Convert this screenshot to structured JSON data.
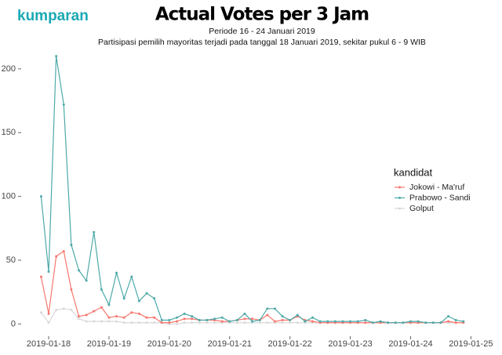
{
  "brand": "kumparan",
  "chart_data": {
    "type": "line",
    "title": "Actual Votes per 3 Jam",
    "subtitle": "Periode 16 - 24 Januari 2019",
    "annotation": "Partisipasi pemilih mayoritas terjadi pada tanggal 18 Januari 2019, sekitar pukul 6 - 9 WIB",
    "legend_title": "kandidat",
    "x": [
      "2019-01-17 21:00",
      "2019-01-18 00:00",
      "2019-01-18 03:00",
      "2019-01-18 06:00",
      "2019-01-18 09:00",
      "2019-01-18 12:00",
      "2019-01-18 15:00",
      "2019-01-18 18:00",
      "2019-01-18 21:00",
      "2019-01-19 00:00",
      "2019-01-19 03:00",
      "2019-01-19 06:00",
      "2019-01-19 09:00",
      "2019-01-19 12:00",
      "2019-01-19 15:00",
      "2019-01-19 18:00",
      "2019-01-19 21:00",
      "2019-01-20 00:00",
      "2019-01-20 03:00",
      "2019-01-20 06:00",
      "2019-01-20 09:00",
      "2019-01-20 12:00",
      "2019-01-20 15:00",
      "2019-01-20 18:00",
      "2019-01-20 21:00",
      "2019-01-21 00:00",
      "2019-01-21 03:00",
      "2019-01-21 06:00",
      "2019-01-21 09:00",
      "2019-01-21 12:00",
      "2019-01-21 15:00",
      "2019-01-21 18:00",
      "2019-01-21 21:00",
      "2019-01-22 00:00",
      "2019-01-22 03:00",
      "2019-01-22 06:00",
      "2019-01-22 09:00",
      "2019-01-22 12:00",
      "2019-01-22 15:00",
      "2019-01-22 18:00",
      "2019-01-22 21:00",
      "2019-01-23 00:00",
      "2019-01-23 03:00",
      "2019-01-23 06:00",
      "2019-01-23 09:00",
      "2019-01-23 12:00",
      "2019-01-23 15:00",
      "2019-01-23 18:00",
      "2019-01-23 21:00",
      "2019-01-24 00:00",
      "2019-01-24 03:00",
      "2019-01-24 06:00",
      "2019-01-24 09:00",
      "2019-01-24 12:00",
      "2019-01-24 15:00",
      "2019-01-24 18:00",
      "2019-01-24 21:00"
    ],
    "series": [
      {
        "name": "Jokowi - Ma'ruf",
        "color": "#f8766d",
        "values": [
          37,
          8,
          53,
          57,
          27,
          6,
          7,
          10,
          13,
          5,
          6,
          5,
          9,
          8,
          5,
          5,
          1,
          1,
          2,
          4,
          4,
          3,
          3,
          3,
          2,
          2,
          3,
          4,
          4,
          3,
          7,
          2,
          3,
          3,
          6,
          3,
          2,
          1,
          1,
          1,
          1,
          1,
          1,
          1,
          1,
          1,
          1,
          1,
          1,
          1,
          1,
          1,
          1,
          1,
          2,
          1,
          1
        ]
      },
      {
        "name": "Prabowo - Sandi",
        "color": "#4fa9a9",
        "values": [
          100,
          41,
          210,
          172,
          62,
          42,
          34,
          72,
          27,
          15,
          40,
          20,
          37,
          18,
          24,
          20,
          3,
          3,
          5,
          8,
          6,
          3,
          3,
          4,
          5,
          2,
          3,
          8,
          2,
          3,
          12,
          12,
          6,
          3,
          7,
          2,
          5,
          2,
          2,
          2,
          2,
          2,
          2,
          3,
          1,
          2,
          1,
          1,
          1,
          2,
          2,
          1,
          1,
          1,
          6,
          3,
          2
        ]
      },
      {
        "name": "Golput",
        "color": "#d9d9d9",
        "values": [
          9,
          1,
          11,
          12,
          11,
          4,
          2,
          2,
          2,
          2,
          2,
          1,
          1,
          1,
          1,
          1,
          1,
          0,
          0,
          1,
          1,
          1,
          1,
          1,
          1,
          1,
          1,
          1,
          1,
          1,
          1,
          1,
          1,
          1,
          1,
          1,
          1,
          1,
          1,
          1,
          1,
          1,
          1,
          1,
          1,
          1,
          1,
          1,
          1,
          1,
          1,
          1,
          1,
          1,
          1,
          1,
          1
        ]
      }
    ],
    "xlim": [
      "2019-01-17 14:00",
      "2019-01-25 03:00"
    ],
    "xticks": [
      "2019-01-18",
      "2019-01-19",
      "2019-01-20",
      "2019-01-21",
      "2019-01-22",
      "2019-01-23",
      "2019-01-24",
      "2019-01-25"
    ],
    "ylim": [
      -9,
      211
    ],
    "yticks": [
      0,
      50,
      100,
      150,
      200
    ],
    "grid": false,
    "legend": "right"
  }
}
